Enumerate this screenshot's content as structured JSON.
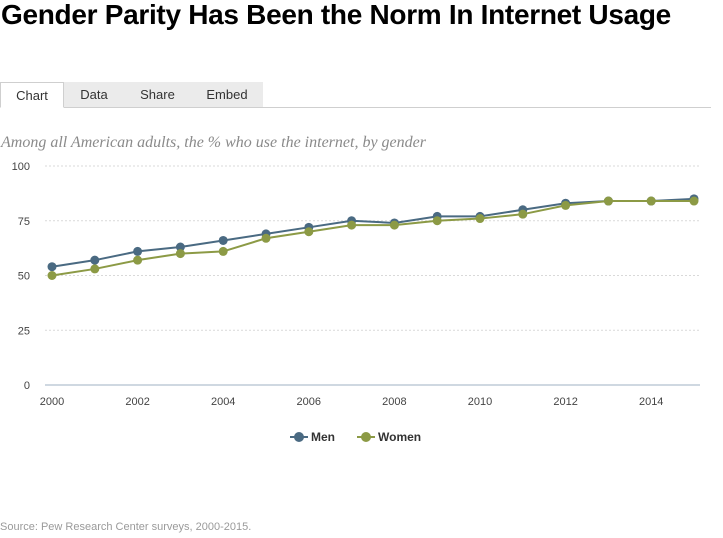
{
  "header": {
    "title": "Gender Parity Has Been the Norm In Internet Usage"
  },
  "tabs": [
    {
      "label": "Chart",
      "active": true
    },
    {
      "label": "Data",
      "active": false
    },
    {
      "label": "Share",
      "active": false
    },
    {
      "label": "Embed",
      "active": false
    }
  ],
  "subtitle": "Among all American adults, the % who use the internet, by gender",
  "source": "Source: Pew Research Center surveys, 2000-2015.",
  "colors": {
    "men": "#4a6a82",
    "women": "#8c9a45",
    "grid": "#d9d9d9",
    "axis": "#9fb2c3"
  },
  "chart_data": {
    "type": "line",
    "title": "",
    "xlabel": "",
    "ylabel": "",
    "x": [
      2000,
      2001,
      2002,
      2003,
      2004,
      2005,
      2006,
      2007,
      2008,
      2009,
      2010,
      2011,
      2012,
      2013,
      2014,
      2015
    ],
    "series": [
      {
        "name": "Men",
        "color": "#4a6a82",
        "values": [
          54,
          57,
          61,
          63,
          66,
          69,
          72,
          75,
          74,
          77,
          77,
          80,
          83,
          84,
          84,
          85
        ]
      },
      {
        "name": "Women",
        "color": "#8c9a45",
        "values": [
          50,
          53,
          57,
          60,
          61,
          67,
          70,
          73,
          73,
          75,
          76,
          78,
          82,
          84,
          84,
          84
        ]
      }
    ],
    "xlim": [
      2000,
      2015
    ],
    "ylim": [
      0,
      100
    ],
    "yticks": [
      "0",
      "25",
      "50",
      "75",
      "100"
    ],
    "xticks": [
      "2000",
      "2002",
      "2004",
      "2006",
      "2008",
      "2010",
      "2012",
      "2014"
    ],
    "grid": true,
    "legend_position": "bottom-center"
  }
}
